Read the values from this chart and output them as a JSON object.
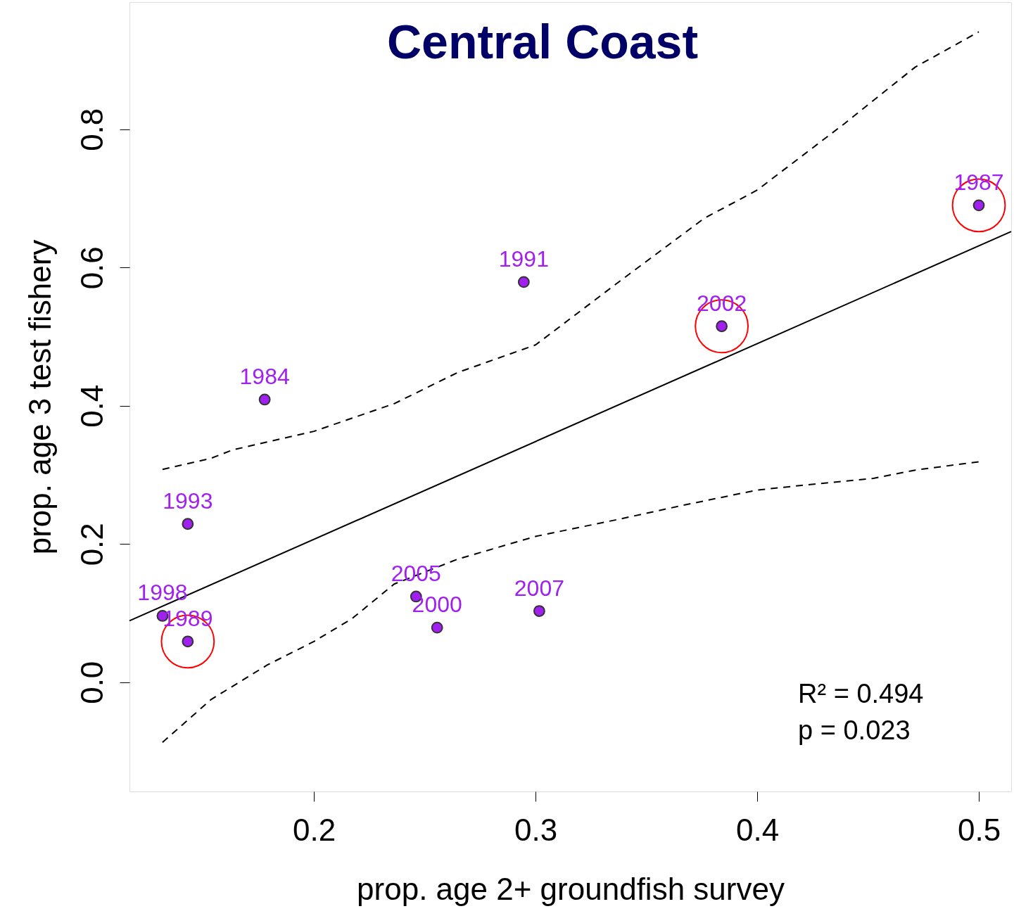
{
  "chart_data": {
    "type": "scatter",
    "title": "Central Coast",
    "xlabel": "prop. age 2+ groundfish survey",
    "ylabel": "prop. age 3 test fishery",
    "xlim": [
      0.1168,
      0.5146
    ],
    "ylim": [
      -0.158,
      0.984
    ],
    "xticks": [
      0.2,
      0.3,
      0.4,
      0.5
    ],
    "yticks": [
      {
        "value": 0,
        "label": "0.0"
      },
      0.2,
      0.4,
      0.6,
      0.8
    ],
    "grid": false,
    "series": [
      {
        "color": "#a020f0",
        "marker": "circle",
        "x": [
          0.5,
          0.384,
          0.2947,
          0.1778,
          0.1431,
          0.1317,
          0.1431,
          0.2461,
          0.2556,
          0.3017
        ],
        "values": [
          0.69,
          0.515,
          0.579,
          0.409,
          0.229,
          0.096,
          0.059,
          0.124,
          0.079,
          0.103
        ]
      },
      {
        "type": "line",
        "color": "#000000",
        "line_style": "solid",
        "marker": "none",
        "x": [
          0.1168,
          0.5146
        ],
        "values": [
          0.089,
          0.652
        ]
      },
      {
        "type": "line",
        "color": "#000000",
        "line_style": "dashed",
        "marker": "none",
        "x": [
          0.1317,
          0.1536,
          0.1632,
          0.2,
          0.2362,
          0.2648,
          0.3,
          0.3379,
          0.376,
          0.4,
          0.4397,
          0.4713,
          0.5
        ],
        "values": [
          0.308,
          0.324,
          0.336,
          0.363,
          0.403,
          0.448,
          0.488,
          0.58,
          0.671,
          0.712,
          0.809,
          0.89,
          0.941
        ]
      },
      {
        "type": "line",
        "color": "#000000",
        "line_style": "dashed",
        "marker": "none",
        "x": [
          0.1317,
          0.1536,
          0.179,
          0.2,
          0.2172,
          0.2362,
          0.2648,
          0.3,
          0.3379,
          0.3665,
          0.4,
          0.4207,
          0.4524,
          0.4714,
          0.5
        ],
        "values": [
          -0.087,
          -0.025,
          0.025,
          0.059,
          0.092,
          0.142,
          0.178,
          0.211,
          0.236,
          0.256,
          0.278,
          0.285,
          0.295,
          0.307,
          0.319
        ]
      },
      {
        "color": "#ff0000",
        "marker": "circle",
        "x": [
          0.5,
          0.384,
          0.1431
        ],
        "values": [
          0.69,
          0.515,
          0.059
        ]
      }
    ],
    "annotations": [
      {
        "text": "1987",
        "x": 0.5,
        "y": 0.69
      },
      {
        "text": "2002",
        "x": 0.384,
        "y": 0.515
      },
      {
        "text": "1991",
        "x": 0.2947,
        "y": 0.579
      },
      {
        "text": "1984",
        "x": 0.1778,
        "y": 0.409
      },
      {
        "text": "1993",
        "x": 0.1431,
        "y": 0.229
      },
      {
        "text": "1998",
        "x": 0.1317,
        "y": 0.096
      },
      {
        "text": "1989",
        "x": 0.1431,
        "y": 0.059
      },
      {
        "text": "2005",
        "x": 0.2461,
        "y": 0.124
      },
      {
        "text": "2000",
        "x": 0.2556,
        "y": 0.079
      },
      {
        "text": "2007",
        "x": 0.3017,
        "y": 0.103
      },
      "R² = 0.494",
      "p = 0.023"
    ]
  }
}
